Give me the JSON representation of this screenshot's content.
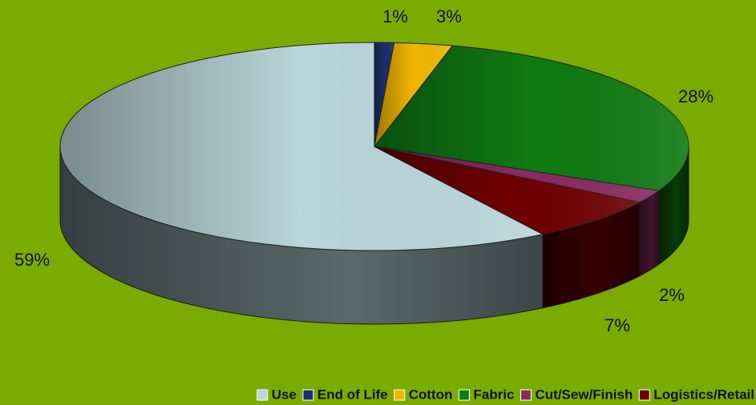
{
  "chart_data": {
    "type": "pie3d",
    "categories": [
      "Use",
      "End of Life",
      "Cotton",
      "Fabric",
      "Cut/Sew/Finish",
      "Logistics/Retail"
    ],
    "values": [
      59,
      1,
      3,
      28,
      2,
      7
    ],
    "value_labels": [
      "59%",
      "1%",
      "3%",
      "28%",
      "2%",
      "7%"
    ],
    "colors": [
      "#b9d6da",
      "#1b2f6e",
      "#f2b600",
      "#0f7a12",
      "#8a2a62",
      "#6e0000"
    ],
    "legend": "bottom"
  }
}
